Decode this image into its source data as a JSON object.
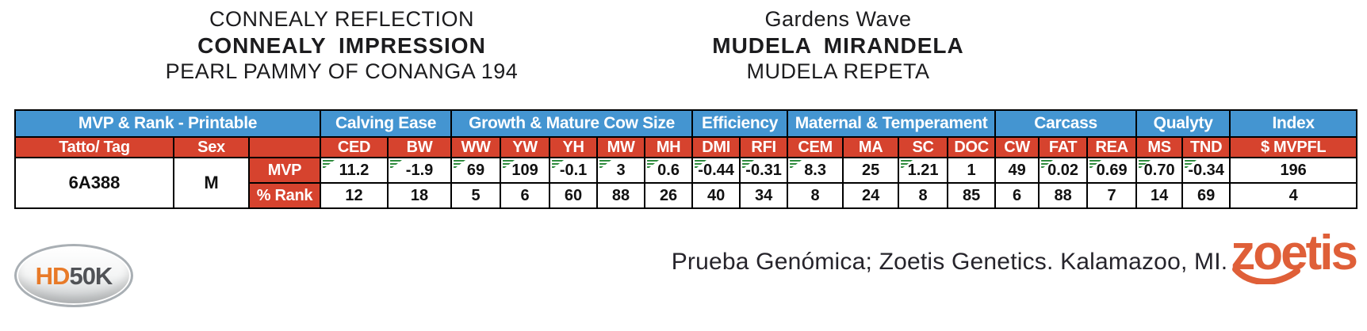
{
  "colors": {
    "header_blue": "#4495D1",
    "header_red": "#D6432E",
    "flag_green": "#2E8B3D",
    "zoetis_orange": "#DF5F38",
    "hd_orange": "#E87A28",
    "hd_gray": "#505256"
  },
  "pedigree": {
    "left": {
      "line1": "CONNEALY REFLECTION",
      "line2": "CONNEALY IMPRESSION",
      "line3": "PEARL PAMMY OF CONANGA 194"
    },
    "right": {
      "line1": "Gardens Wave",
      "line2": "MUDELA MIRANDELA",
      "line3": "MUDELA REPETA"
    }
  },
  "table": {
    "group_headers": [
      {
        "label": "MVP & Rank - Printable",
        "colspan": 3
      },
      {
        "label": "Calving Ease",
        "colspan": 2
      },
      {
        "label": "Growth & Mature Cow Size",
        "colspan": 5
      },
      {
        "label": "Efficiency",
        "colspan": 2
      },
      {
        "label": "Maternal & Temperament",
        "colspan": 4
      },
      {
        "label": "Carcass",
        "colspan": 3
      },
      {
        "label": "Qualyty",
        "colspan": 2
      },
      {
        "label": "Index",
        "colspan": 1
      }
    ],
    "column_headers": [
      "Tatto/ Tag",
      "Sex",
      "",
      "CED",
      "BW",
      "WW",
      "YW",
      "YH",
      "MW",
      "MH",
      "DMI",
      "RFI",
      "CEM",
      "MA",
      "SC",
      "DOC",
      "CW",
      "FAT",
      "REA",
      "MS",
      "TND",
      "$ MVPFL"
    ],
    "animal": {
      "tattoo_tag": "6A388",
      "sex": "M"
    },
    "rows": [
      {
        "label": "MVP",
        "values": [
          "11.2",
          "-1.9",
          "69",
          "109",
          "-0.1",
          "3",
          "0.6",
          "-0.44",
          "-0.31",
          "8.3",
          "25",
          "1.21",
          "1",
          "49",
          "0.02",
          "0.69",
          "0.70",
          "-0.34",
          "196"
        ],
        "flags": [
          true,
          true,
          true,
          true,
          true,
          true,
          true,
          true,
          true,
          true,
          false,
          true,
          false,
          false,
          true,
          true,
          true,
          true,
          false
        ]
      },
      {
        "label": "% Rank",
        "values": [
          "12",
          "18",
          "5",
          "6",
          "60",
          "88",
          "26",
          "40",
          "34",
          "8",
          "24",
          "8",
          "85",
          "6",
          "88",
          "7",
          "14",
          "69",
          "4"
        ],
        "flags": [
          false,
          false,
          false,
          false,
          false,
          false,
          false,
          false,
          false,
          false,
          false,
          false,
          false,
          false,
          false,
          false,
          false,
          false,
          false
        ]
      }
    ]
  },
  "footer": {
    "hd50k": {
      "prefix": "HD",
      "suffix": "50K"
    },
    "note": "Prueba Genómica; Zoetis Genetics. Kalamazoo, MI.",
    "zoetis_wordmark": "zoetis"
  }
}
